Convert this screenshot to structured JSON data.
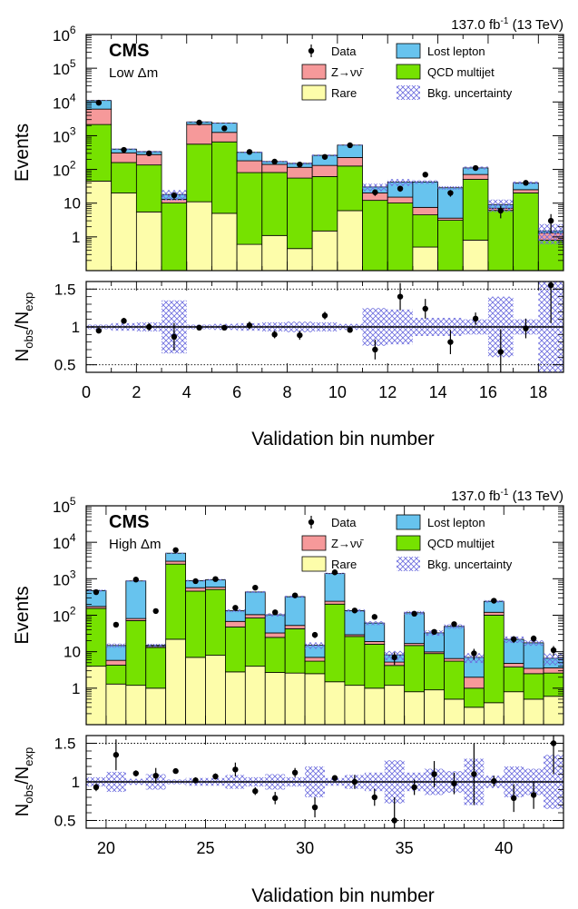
{
  "colors": {
    "lost_lepton": "#67c3ee",
    "znunu": "#f6999a",
    "qcd": "#76e200",
    "rare": "#fdfdaa",
    "uncertainty": "#6c6cde",
    "data": "#000000"
  },
  "chart_data": [
    {
      "type": "bar",
      "stacked": true,
      "log_y": true,
      "title": "CMS",
      "subtitle": "Low Δm",
      "lumi_label": "137.0 fb",
      "lumi_sup": "-1",
      "energy_label": "(13 TeV)",
      "xlabel": "Validation bin number",
      "ylabel": "Events",
      "ratio_ylabel": "Nobs/Nexp",
      "ylim": [
        0.1,
        1000000
      ],
      "xlim": [
        0,
        19
      ],
      "ratio_ylim": [
        0.4,
        1.6
      ],
      "x_ticks": [
        "0",
        "2",
        "4",
        "6",
        "8",
        "10",
        "12",
        "14",
        "16",
        "18"
      ],
      "y_ticks": [
        "1",
        "10",
        "10^2",
        "10^3",
        "10^4",
        "10^5",
        "10^6"
      ],
      "ratio_ticks": [
        "0.5",
        "1",
        "1.5"
      ],
      "legend": {
        "data": "Data",
        "lost_lepton": "Lost lepton",
        "znunu": "Z→νν̄",
        "qcd": "QCD multijet",
        "rare": "Rare",
        "uncertainty": "Bkg. uncertainty"
      },
      "bins_start": 0,
      "series": [
        {
          "name": "Rare",
          "values": [
            45,
            20,
            5.5,
            0.1,
            11,
            5,
            0.6,
            1.1,
            0.45,
            1.5,
            6,
            0.1,
            0.1,
            0.5,
            0.1,
            0.8,
            0.1,
            0.1,
            0.1
          ]
        },
        {
          "name": "QCD multijet",
          "values": [
            2100,
            140,
            130,
            10,
            550,
            650,
            80,
            80,
            55,
            60,
            120,
            12,
            10,
            4,
            3,
            50,
            6,
            20,
            0.7
          ]
        },
        {
          "name": "Z→νν̄",
          "values": [
            4000,
            150,
            140,
            3,
            1600,
            600,
            100,
            60,
            60,
            70,
            100,
            8,
            5,
            3,
            0.5,
            20,
            1,
            5,
            0.5
          ]
        },
        {
          "name": "Lost lepton",
          "values": [
            4900,
            90,
            60,
            5,
            400,
            1100,
            140,
            30,
            35,
            130,
            300,
            10,
            27,
            35,
            25,
            40,
            2,
            15,
            0.2
          ]
        }
      ],
      "data_points": [
        9500,
        380,
        300,
        17,
        2450,
        1650,
        330,
        170,
        140,
        235,
        520,
        21,
        27,
        70,
        20,
        110,
        6,
        40,
        3
      ],
      "ratio_values": [
        0.95,
        1.08,
        1.0,
        0.87,
        0.99,
        0.99,
        1.02,
        0.9,
        0.89,
        1.15,
        0.96,
        0.7,
        1.4,
        1.24,
        0.8,
        1.11,
        0.67,
        0.98,
        1.55
      ],
      "ratio_err": [
        0.02,
        0.04,
        0.05,
        0.18,
        0.02,
        0.03,
        0.05,
        0.05,
        0.06,
        0.05,
        0.03,
        0.13,
        0.18,
        0.13,
        0.16,
        0.08,
        0.3,
        0.13,
        0.5
      ],
      "unc_frac": [
        0.03,
        0.05,
        0.06,
        0.35,
        0.03,
        0.04,
        0.05,
        0.06,
        0.07,
        0.06,
        0.04,
        0.25,
        0.23,
        0.12,
        0.12,
        0.1,
        0.4,
        0.1,
        0.6
      ]
    },
    {
      "type": "bar",
      "stacked": true,
      "log_y": true,
      "title": "CMS",
      "subtitle": "High Δm",
      "lumi_label": "137.0 fb",
      "lumi_sup": "-1",
      "energy_label": "(13 TeV)",
      "xlabel": "Validation bin number",
      "ylabel": "Events",
      "ratio_ylabel": "Nobs/Nexp",
      "ylim": [
        0.1,
        100000
      ],
      "xlim": [
        19,
        43
      ],
      "ratio_ylim": [
        0.4,
        1.6
      ],
      "x_ticks": [
        "20",
        "25",
        "30",
        "35",
        "40"
      ],
      "y_ticks": [
        "1",
        "10",
        "10^2",
        "10^3",
        "10^4",
        "10^5"
      ],
      "ratio_ticks": [
        "0.5",
        "1",
        "1.5"
      ],
      "legend": {
        "data": "Data",
        "lost_lepton": "Lost lepton",
        "znunu": "Z→νν̄",
        "qcd": "QCD multijet",
        "rare": "Rare",
        "uncertainty": "Bkg. uncertainty"
      },
      "bins_start": 19,
      "series": [
        {
          "name": "Rare",
          "values": [
            4,
            1.3,
            1.2,
            1,
            22,
            7,
            8,
            2.8,
            4,
            2.7,
            2.6,
            2.5,
            1.5,
            1.2,
            1,
            1.2,
            0.8,
            0.9,
            0.5,
            0.3,
            0.4,
            0.8,
            0.5,
            0.6
          ]
        },
        {
          "name": "QCD multijet",
          "values": [
            150,
            3,
            70,
            12,
            2500,
            450,
            500,
            45,
            80,
            22,
            40,
            3,
            200,
            25,
            15,
            3,
            14,
            8,
            5,
            0.7,
            100,
            3,
            2,
            2
          ]
        },
        {
          "name": "Z→νν̄",
          "values": [
            20,
            1.5,
            10,
            1,
            500,
            110,
            80,
            20,
            20,
            8,
            10,
            1.5,
            40,
            3,
            3,
            1,
            2,
            1,
            1,
            1,
            20,
            1,
            1,
            1
          ]
        },
        {
          "name": "Lost lepton",
          "values": [
            300,
            9,
            790,
            1,
            2000,
            320,
            350,
            65,
            330,
            70,
            270,
            8,
            1150,
            105,
            42,
            3,
            100,
            23,
            43,
            5,
            120,
            17,
            14,
            3
          ]
        }
      ],
      "data_points": [
        430,
        55,
        950,
        130,
        6100,
        860,
        980,
        160,
        570,
        120,
        350,
        29,
        1500,
        135,
        90,
        7,
        110,
        35,
        57,
        9,
        250,
        22,
        23,
        11
      ],
      "ratio_values": [
        0.93,
        1.35,
        1.11,
        1.08,
        1.14,
        1.02,
        1.07,
        1.16,
        0.88,
        0.79,
        1.12,
        0.67,
        1.05,
        1.0,
        0.8,
        0.5,
        0.93,
        1.1,
        0.98,
        1.1,
        1.01,
        0.79,
        0.83,
        1.5
      ],
      "ratio_err": [
        0.05,
        0.2,
        0.04,
        0.1,
        0.02,
        0.04,
        0.04,
        0.09,
        0.05,
        0.08,
        0.06,
        0.13,
        0.03,
        0.09,
        0.11,
        0.3,
        0.1,
        0.17,
        0.14,
        0.4,
        0.07,
        0.18,
        0.18,
        0.4
      ],
      "unc_frac": [
        0.06,
        0.13,
        0.04,
        0.1,
        0.03,
        0.05,
        0.05,
        0.09,
        0.06,
        0.1,
        0.06,
        0.2,
        0.05,
        0.09,
        0.12,
        0.28,
        0.12,
        0.17,
        0.14,
        0.3,
        0.08,
        0.2,
        0.17,
        0.35
      ]
    }
  ]
}
